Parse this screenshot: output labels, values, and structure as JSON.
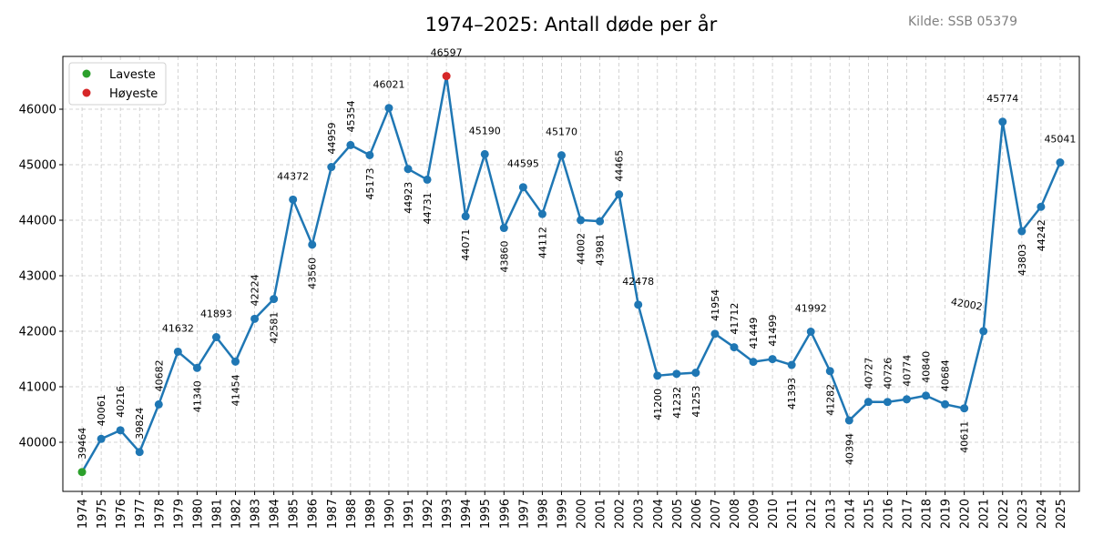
{
  "chart_data": {
    "type": "line",
    "title": "1974–2025: Antall døde per år",
    "source_note": "Kilde: SSB 05379",
    "xlabel": "",
    "ylabel": "",
    "x": [
      1974,
      1975,
      1976,
      1977,
      1978,
      1979,
      1980,
      1981,
      1982,
      1983,
      1984,
      1985,
      1986,
      1987,
      1988,
      1989,
      1990,
      1991,
      1992,
      1993,
      1994,
      1995,
      1996,
      1997,
      1998,
      1999,
      2000,
      2001,
      2002,
      2003,
      2004,
      2005,
      2006,
      2007,
      2008,
      2009,
      2010,
      2011,
      2012,
      2013,
      2014,
      2015,
      2016,
      2017,
      2018,
      2019,
      2020,
      2021,
      2022,
      2023,
      2024,
      2025
    ],
    "values": [
      39464,
      40061,
      40216,
      39824,
      40682,
      41632,
      41340,
      41893,
      41454,
      42224,
      42581,
      44372,
      43560,
      44959,
      45354,
      45173,
      46021,
      44923,
      44731,
      46597,
      44071,
      45190,
      43860,
      44595,
      44112,
      45170,
      44002,
      43981,
      44465,
      42478,
      41200,
      41232,
      41253,
      41954,
      41712,
      41449,
      41499,
      41393,
      41992,
      41282,
      40394,
      40727,
      40726,
      40774,
      40840,
      40684,
      40611,
      42002,
      45774,
      43803,
      44242,
      45041
    ],
    "yticks": [
      40000,
      41000,
      42000,
      43000,
      44000,
      45000,
      46000
    ],
    "xlim": [
      1973,
      2026
    ],
    "ylim": [
      39115,
      46951
    ],
    "grid": true,
    "legend_position": "top-left",
    "legend": [
      {
        "label": "Laveste",
        "color": "#2ca02c",
        "year": 1974
      },
      {
        "label": "Høyeste",
        "color": "#d62728",
        "year": 1993
      }
    ],
    "line_color": "#1f77b4"
  }
}
